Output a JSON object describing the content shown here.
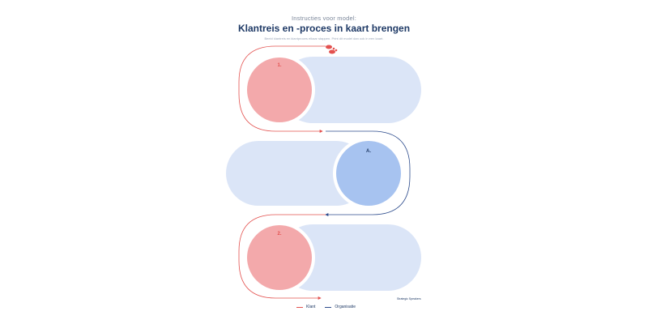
{
  "header": {
    "subtitle": "Instructies voor model:",
    "title": "Klantreis en -proces in kaart brengen",
    "description": "Beeld klantreis en klantproces elkaar stappen. Print dit model dan ook in een kaart."
  },
  "steps": [
    {
      "label": "1.",
      "type": "klant"
    },
    {
      "label": "A.",
      "type": "organisatie"
    },
    {
      "label": "2.",
      "type": "klant"
    }
  ],
  "credit": "Strategic Speakers",
  "legend": {
    "items": [
      {
        "label": "Klant",
        "color": "#e3514f"
      },
      {
        "label": "Organisatie",
        "color": "#2c4b8c"
      }
    ]
  },
  "colors": {
    "klant_circle": "#f3a9ab",
    "organisatie_circle": "#a7c3f0",
    "pill": "#dbe5f7",
    "klant_line": "#e3514f",
    "organisatie_line": "#2c4b8c",
    "label_red": "#e3514f",
    "label_blue": "#1f3a66"
  },
  "icons": {
    "footprints": "footprints-icon"
  }
}
